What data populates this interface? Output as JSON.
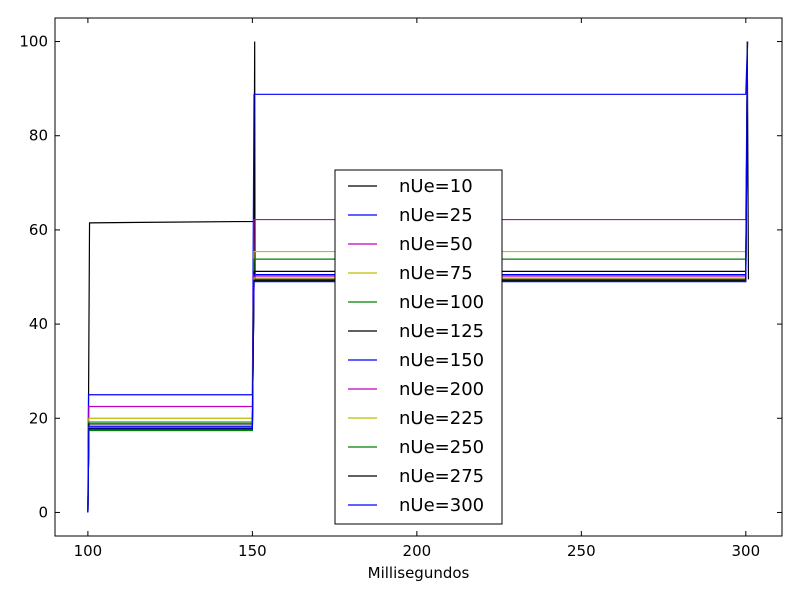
{
  "chart_data": {
    "type": "line",
    "title": "",
    "xlabel": "Millisegundos",
    "ylabel": "",
    "xlim": [
      90,
      311
    ],
    "ylim": [
      -5,
      105
    ],
    "x_ticks": [
      100,
      150,
      200,
      250,
      300
    ],
    "y_ticks": [
      0,
      20,
      40,
      60,
      80,
      100
    ],
    "grid": false,
    "legend_position": "center",
    "series": [
      {
        "name": "nUe=10",
        "color": "#000000",
        "points": [
          [
            100,
            0
          ],
          [
            100.5,
            61.5
          ],
          [
            150.5,
            61.8
          ],
          [
            150.7,
            100
          ],
          [
            150.8,
            49.5
          ],
          [
            300,
            49.5
          ],
          [
            300.5,
            92
          ],
          [
            300.8,
            49.5
          ]
        ]
      },
      {
        "name": "nUe=25",
        "color": "#0000ff",
        "points": [
          [
            100,
            0
          ],
          [
            100.2,
            25
          ],
          [
            150,
            25
          ],
          [
            150.5,
            88.8
          ],
          [
            300,
            88.8
          ],
          [
            300.5,
            100
          ]
        ]
      },
      {
        "name": "nUe=50",
        "color": "#bf00bf",
        "points": [
          [
            100,
            0
          ],
          [
            100.3,
            22.5
          ],
          [
            150,
            22.5
          ],
          [
            150.5,
            62.2
          ],
          [
            300,
            62.2
          ],
          [
            300.5,
            100
          ]
        ]
      },
      {
        "name": "nUe=75",
        "color": "#bfbf00",
        "points": [
          [
            100,
            0
          ],
          [
            100.3,
            20
          ],
          [
            150,
            20
          ],
          [
            150.5,
            55.4
          ],
          [
            300,
            55.4
          ],
          [
            300.5,
            100
          ]
        ]
      },
      {
        "name": "nUe=100",
        "color": "#008000",
        "points": [
          [
            100,
            0
          ],
          [
            100.3,
            19.2
          ],
          [
            150,
            19.2
          ],
          [
            150.5,
            53.8
          ],
          [
            300,
            53.8
          ],
          [
            300.5,
            100
          ]
        ]
      },
      {
        "name": "nUe=125",
        "color": "#000000",
        "points": [
          [
            100,
            0
          ],
          [
            100.3,
            18.8
          ],
          [
            150,
            18.8
          ],
          [
            150.5,
            51.2
          ],
          [
            300,
            51.2
          ],
          [
            300.5,
            100
          ]
        ]
      },
      {
        "name": "nUe=150",
        "color": "#0000ff",
        "points": [
          [
            100,
            0
          ],
          [
            100.3,
            18.3
          ],
          [
            150,
            18.3
          ],
          [
            150.5,
            50.5
          ],
          [
            300,
            50.5
          ],
          [
            300.5,
            100
          ]
        ]
      },
      {
        "name": "nUe=200",
        "color": "#bf00bf",
        "points": [
          [
            100,
            0
          ],
          [
            100.3,
            18.0
          ],
          [
            150,
            18.0
          ],
          [
            150.5,
            50.2
          ],
          [
            300,
            50.2
          ],
          [
            300.5,
            100
          ]
        ]
      },
      {
        "name": "nUe=225",
        "color": "#bfbf00",
        "points": [
          [
            100,
            0
          ],
          [
            100.3,
            17.6
          ],
          [
            150,
            17.6
          ],
          [
            150.5,
            49.8
          ],
          [
            300,
            49.8
          ],
          [
            300.5,
            100
          ]
        ]
      },
      {
        "name": "nUe=250",
        "color": "#008000",
        "points": [
          [
            100,
            0
          ],
          [
            100.3,
            17.4
          ],
          [
            150,
            17.4
          ],
          [
            150.5,
            49.4
          ],
          [
            300,
            49.4
          ],
          [
            300.5,
            100
          ]
        ]
      },
      {
        "name": "nUe=275",
        "color": "#000000",
        "points": [
          [
            100,
            0
          ],
          [
            100.3,
            17.8
          ],
          [
            150,
            17.8
          ],
          [
            150.5,
            49.2
          ],
          [
            300,
            49.2
          ],
          [
            300.5,
            100
          ]
        ]
      },
      {
        "name": "nUe=300",
        "color": "#0000ff",
        "points": [
          [
            100,
            0
          ],
          [
            100.3,
            17.7
          ],
          [
            150,
            17.7
          ],
          [
            150.5,
            49.0
          ],
          [
            300,
            49.0
          ],
          [
            300.5,
            100
          ]
        ]
      }
    ]
  }
}
